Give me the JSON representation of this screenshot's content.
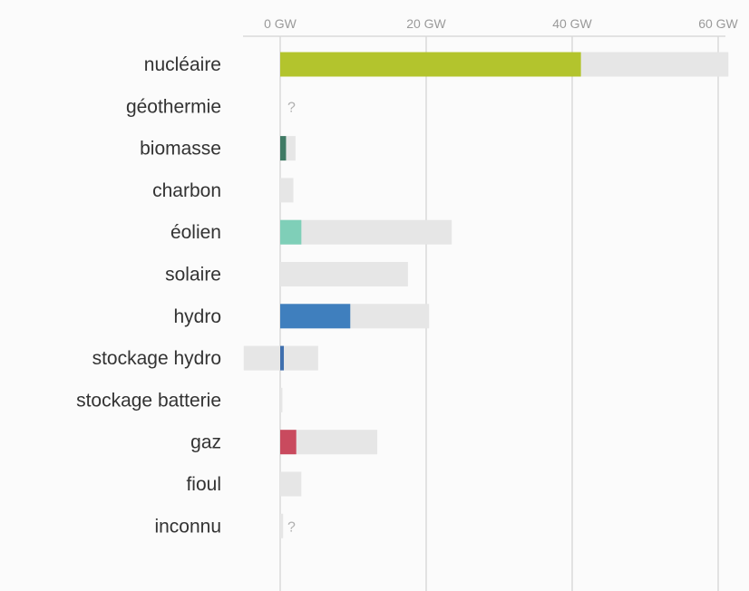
{
  "chart_data": {
    "type": "bar",
    "orientation": "horizontal",
    "unit": "GW",
    "x_ticks": [
      {
        "value": 0,
        "label": "0 GW"
      },
      {
        "value": 20,
        "label": "20 GW"
      },
      {
        "value": 40,
        "label": "40 GW"
      },
      {
        "value": 60,
        "label": "60 GW"
      }
    ],
    "xlim": [
      -5,
      62
    ],
    "grid": true,
    "categories": [
      {
        "label": "nucléaire",
        "production": 41.2,
        "capacity": 61.4,
        "color": "#b3c42d"
      },
      {
        "label": "géothermie",
        "production": null,
        "capacity": null,
        "unknown_marker": "?"
      },
      {
        "label": "biomasse",
        "production": 0.8,
        "capacity": 2.1,
        "color": "#3f7a64"
      },
      {
        "label": "charbon",
        "production": 0,
        "capacity": 1.8
      },
      {
        "label": "éolien",
        "production": 2.9,
        "capacity": 23.5,
        "color": "#7fcfb8"
      },
      {
        "label": "solaire",
        "production": 0,
        "capacity": 17.5
      },
      {
        "label": "hydro",
        "production": 9.6,
        "capacity": 20.4,
        "color": "#3f7fbe"
      },
      {
        "label": "stockage hydro",
        "production": 0.5,
        "capacity": 5.2,
        "capacity_negative": -5.0,
        "color": "#3f6fae"
      },
      {
        "label": "stockage batterie",
        "production": 0,
        "capacity": 0.3
      },
      {
        "label": "gaz",
        "production": 2.2,
        "capacity": 13.3,
        "color": "#c94a5e"
      },
      {
        "label": "fioul",
        "production": 0,
        "capacity": 2.9
      },
      {
        "label": "inconnu",
        "production": null,
        "capacity": 0.4,
        "unknown_marker": "?"
      }
    ]
  }
}
